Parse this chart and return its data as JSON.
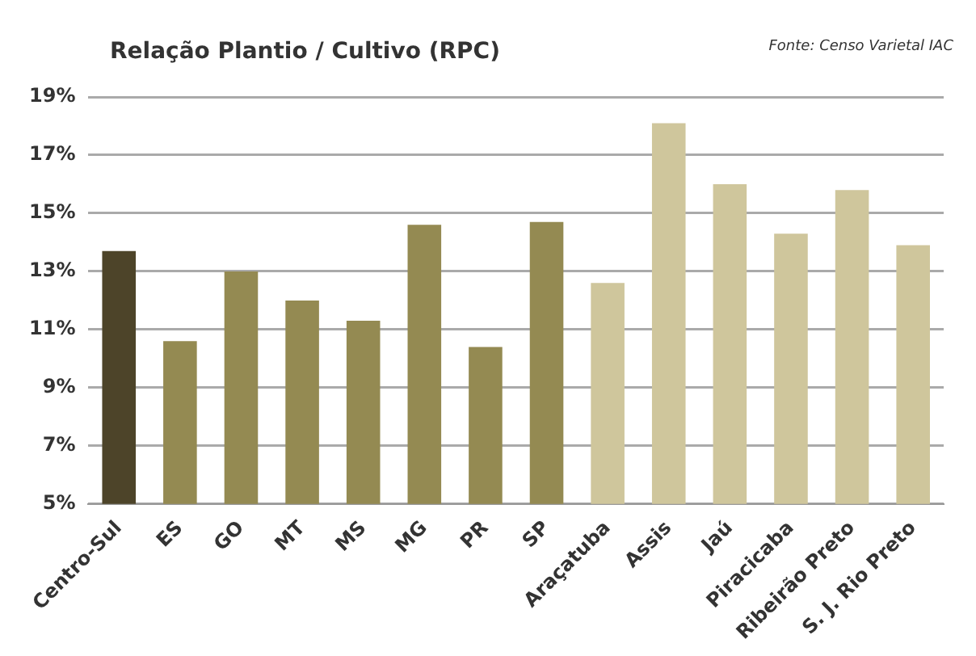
{
  "chart_data": {
    "type": "bar",
    "title": "Relação Plantio / Cultivo (RPC)",
    "annotations": [
      "Fonte: Censo Varietal IAC"
    ],
    "categories": [
      "Centro-Sul",
      "ES",
      "GO",
      "MT",
      "MS",
      "MG",
      "PR",
      "SP",
      "Araçatuba",
      "Assis",
      "Jaú",
      "Piracicaba",
      "Ribeirão Preto",
      "S. J. Rio Preto"
    ],
    "values": [
      13.7,
      10.6,
      13.0,
      12.0,
      11.3,
      14.6,
      10.4,
      14.7,
      12.6,
      18.1,
      16.0,
      14.3,
      15.8,
      13.9
    ],
    "colors": [
      "#4d4429",
      "#948a52",
      "#948a52",
      "#948a52",
      "#948a52",
      "#948a52",
      "#948a52",
      "#948a52",
      "#cfc69c",
      "#cfc69c",
      "#cfc69c",
      "#cfc69c",
      "#cfc69c",
      "#cfc69c"
    ],
    "ylim": [
      5,
      19
    ],
    "yticks": [
      {
        "value": 5,
        "label": "5%"
      },
      {
        "value": 7,
        "label": "7%"
      },
      {
        "value": 9,
        "label": "9%"
      },
      {
        "value": 11,
        "label": "11%"
      },
      {
        "value": 13,
        "label": "13%"
      },
      {
        "value": 15,
        "label": "15%"
      },
      {
        "value": 17,
        "label": "17%"
      },
      {
        "value": 19,
        "label": "19%"
      }
    ],
    "grid": "y",
    "legend": false
  }
}
